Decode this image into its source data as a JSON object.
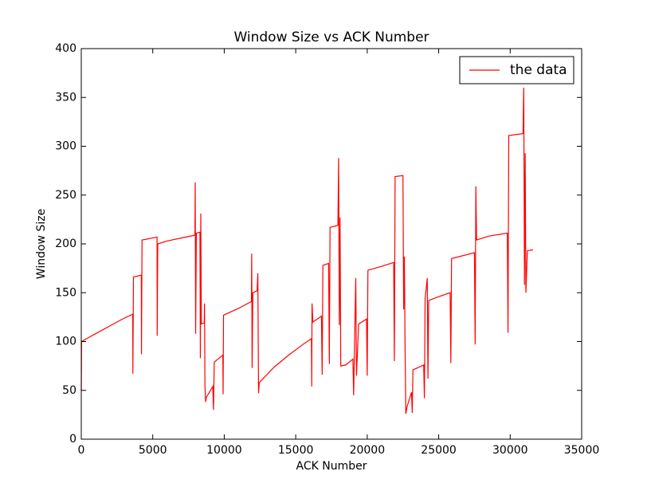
{
  "chart_data": {
    "type": "line",
    "title": "Window Size vs ACK Number",
    "xlabel": "ACK Number",
    "ylabel": "Window Size",
    "x": [
      0,
      20,
      500,
      1000,
      1500,
      2000,
      2500,
      3000,
      3600,
      3610,
      3650,
      4200,
      4210,
      4250,
      5300,
      5310,
      5350,
      6000,
      7000,
      7950,
      7970,
      8000,
      8050,
      8300,
      8330,
      8360,
      8400,
      8600,
      8620,
      8650,
      8700,
      8750,
      9200,
      9250,
      9300,
      9900,
      9920,
      9950,
      11000,
      11900,
      11920,
      11950,
      12000,
      12300,
      12350,
      12400,
      12450,
      13500,
      14500,
      15500,
      16100,
      16120,
      16140,
      16200,
      16800,
      16850,
      16900,
      17300,
      17350,
      17400,
      17950,
      18000,
      18050,
      18100,
      18150,
      18500,
      19000,
      19050,
      19200,
      19250,
      19400,
      19950,
      20000,
      20050,
      21000,
      21850,
      21900,
      21950,
      22500,
      22550,
      22600,
      22650,
      22700,
      22800,
      23100,
      23150,
      23200,
      23950,
      24000,
      24050,
      24200,
      24250,
      24300,
      25000,
      25800,
      25850,
      25900,
      27500,
      27550,
      27600,
      27650,
      28500,
      29800,
      29850,
      29900,
      30900,
      30950,
      31000,
      31050,
      31100,
      31200,
      31600
    ],
    "series": [
      {
        "name": "the data",
        "color": "#ff0000",
        "values": [
          50,
          100,
          104,
          108,
          112,
          116,
          120,
          124,
          128,
          67,
          166,
          168,
          87,
          204,
          207,
          106,
          200,
          203,
          206,
          209,
          263,
          108,
          211,
          212,
          83,
          231,
          118,
          119,
          139,
          55,
          38,
          43,
          54,
          30,
          79,
          86,
          46,
          127,
          134,
          141,
          190,
          73,
          150,
          152,
          170,
          47,
          58,
          74,
          86,
          97,
          103,
          54,
          139,
          120,
          126,
          66,
          178,
          180,
          77,
          217,
          219,
          288,
          117,
          227,
          75,
          76,
          82,
          45,
          165,
          65,
          118,
          123,
          65,
          173,
          177,
          181,
          80,
          269,
          270,
          133,
          187,
          90,
          26,
          34,
          48,
          27,
          71,
          76,
          42,
          144,
          165,
          62,
          142,
          146,
          150,
          78,
          185,
          191,
          97,
          259,
          204,
          208,
          211,
          109,
          311,
          313,
          360,
          158,
          293,
          150,
          193,
          194
        ]
      }
    ],
    "xlim": [
      0,
      35000
    ],
    "xticks": [
      0,
      5000,
      10000,
      15000,
      20000,
      25000,
      30000,
      35000
    ],
    "ylim": [
      0,
      400
    ],
    "yticks": [
      0,
      50,
      100,
      150,
      200,
      250,
      300,
      350,
      400
    ],
    "grid": false,
    "legend": "upper right"
  }
}
